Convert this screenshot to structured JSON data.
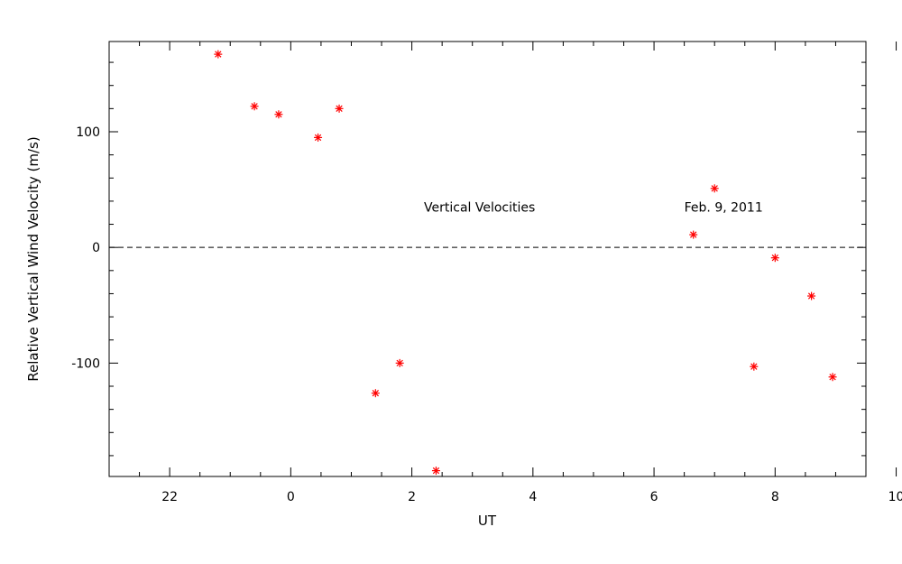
{
  "chart_data": {
    "type": "scatter",
    "title": "",
    "xlabel": "UT",
    "ylabel": "Relative Vertical Wind Velocity (m/s)",
    "xlim": [
      -1.0,
      11.5
    ],
    "ylim": [
      -198,
      178
    ],
    "x_ticks": [
      {
        "value": 0,
        "label": "22"
      },
      {
        "value": 2,
        "label": "0"
      },
      {
        "value": 4,
        "label": "2"
      },
      {
        "value": 6,
        "label": "4"
      },
      {
        "value": 8,
        "label": "6"
      },
      {
        "value": 10,
        "label": "8"
      },
      {
        "value": 12,
        "label": "10"
      }
    ],
    "y_ticks": [
      {
        "value": 100,
        "label": "100"
      },
      {
        "value": 0,
        "label": "0"
      },
      {
        "value": -100,
        "label": "-100"
      }
    ],
    "reference_line": {
      "y": 0,
      "style": "dashed"
    },
    "marker": "asterisk",
    "marker_color": "#ff0000",
    "annotations": [
      {
        "text": "Vertical Velocities",
        "x": 4.2,
        "y": 35
      },
      {
        "text": "Feb. 9, 2011",
        "x": 8.5,
        "y": 35
      }
    ],
    "points": [
      {
        "x": 0.8,
        "y": 167
      },
      {
        "x": 1.4,
        "y": 122
      },
      {
        "x": 1.8,
        "y": 115
      },
      {
        "x": 2.45,
        "y": 95
      },
      {
        "x": 2.8,
        "y": 120
      },
      {
        "x": 3.4,
        "y": -126
      },
      {
        "x": 3.8,
        "y": -100
      },
      {
        "x": 4.4,
        "y": -193
      },
      {
        "x": 8.65,
        "y": 11
      },
      {
        "x": 9.0,
        "y": 51
      },
      {
        "x": 9.65,
        "y": -103
      },
      {
        "x": 10.0,
        "y": -9
      },
      {
        "x": 10.6,
        "y": -42
      },
      {
        "x": 10.95,
        "y": -112
      }
    ]
  }
}
